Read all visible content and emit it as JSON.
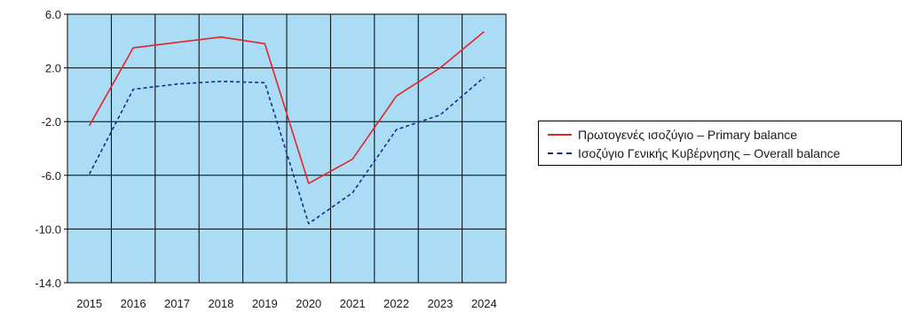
{
  "chart_data": {
    "type": "line",
    "title": "",
    "xlabel": "",
    "ylabel": "",
    "x": [
      "2015",
      "2016",
      "2017",
      "2018",
      "2019",
      "2020",
      "2021",
      "2022",
      "2023",
      "2024"
    ],
    "ylim": [
      -14,
      6
    ],
    "yticks": [
      "6.0",
      "2.0",
      "-2.0",
      "-6.0",
      "-10.0",
      "-14.0"
    ],
    "grid": true,
    "legend_position": "right",
    "plot_background": "#aadcf5",
    "series": [
      {
        "name": "Πρωτογενές ισοζύγιο – Primary balance",
        "values": [
          -2.3,
          3.5,
          3.9,
          4.3,
          3.8,
          -6.6,
          -4.8,
          -0.1,
          2.0,
          4.7
        ],
        "color": "#e3242b",
        "dash": "solid"
      },
      {
        "name": "Ισοζύγιο Γενικής Κυβέρνησης – Overall balance",
        "values": [
          -5.9,
          0.4,
          0.8,
          1.0,
          0.9,
          -9.6,
          -7.3,
          -2.6,
          -1.5,
          1.3
        ],
        "color": "#1a2a8c",
        "dash": "dashed"
      }
    ]
  }
}
